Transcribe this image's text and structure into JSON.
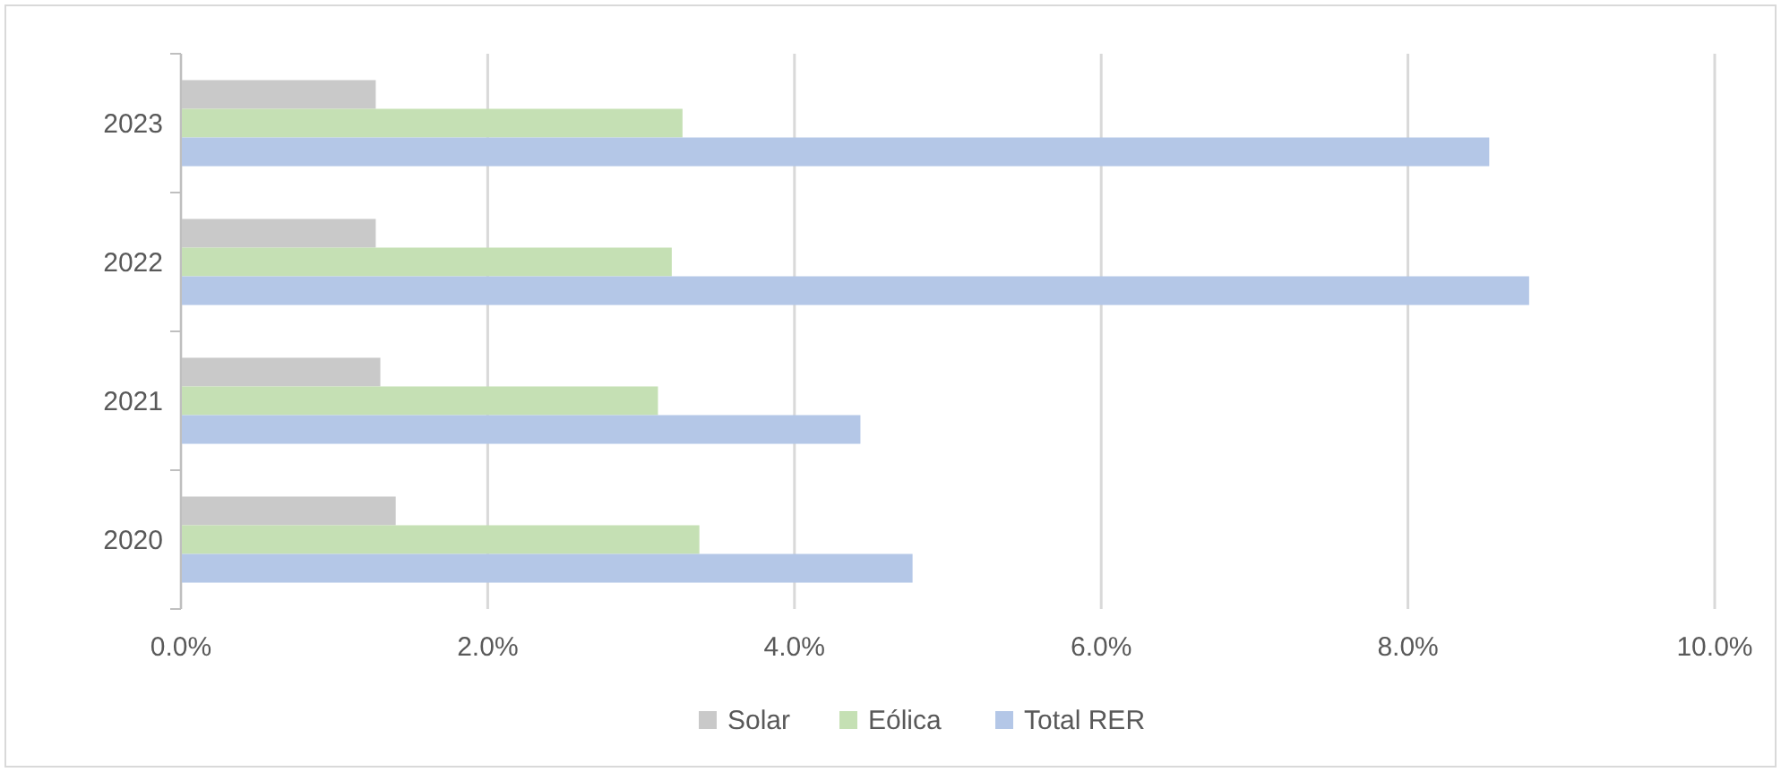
{
  "chart_data": {
    "type": "bar",
    "orientation": "horizontal",
    "categories": [
      "2023",
      "2022",
      "2021",
      "2020"
    ],
    "series": [
      {
        "name": "Solar",
        "color": "#c9c9c9",
        "values": [
          1.27,
          1.27,
          1.3,
          1.4
        ]
      },
      {
        "name": "Eólica",
        "color": "#c5e0b4",
        "values": [
          3.27,
          3.2,
          3.11,
          3.38
        ]
      },
      {
        "name": "Total RER",
        "color": "#b4c7e7",
        "values": [
          8.53,
          8.79,
          4.43,
          4.77
        ]
      }
    ],
    "xlim": [
      0,
      10
    ],
    "xticks": [
      {
        "value": 0,
        "label": "0.0%"
      },
      {
        "value": 2,
        "label": "2.0%"
      },
      {
        "value": 4,
        "label": "4.0%"
      },
      {
        "value": 6,
        "label": "6.0%"
      },
      {
        "value": 8,
        "label": "8.0%"
      },
      {
        "value": 10,
        "label": "10.0%"
      }
    ],
    "grid": "x",
    "legend": "bottom"
  }
}
